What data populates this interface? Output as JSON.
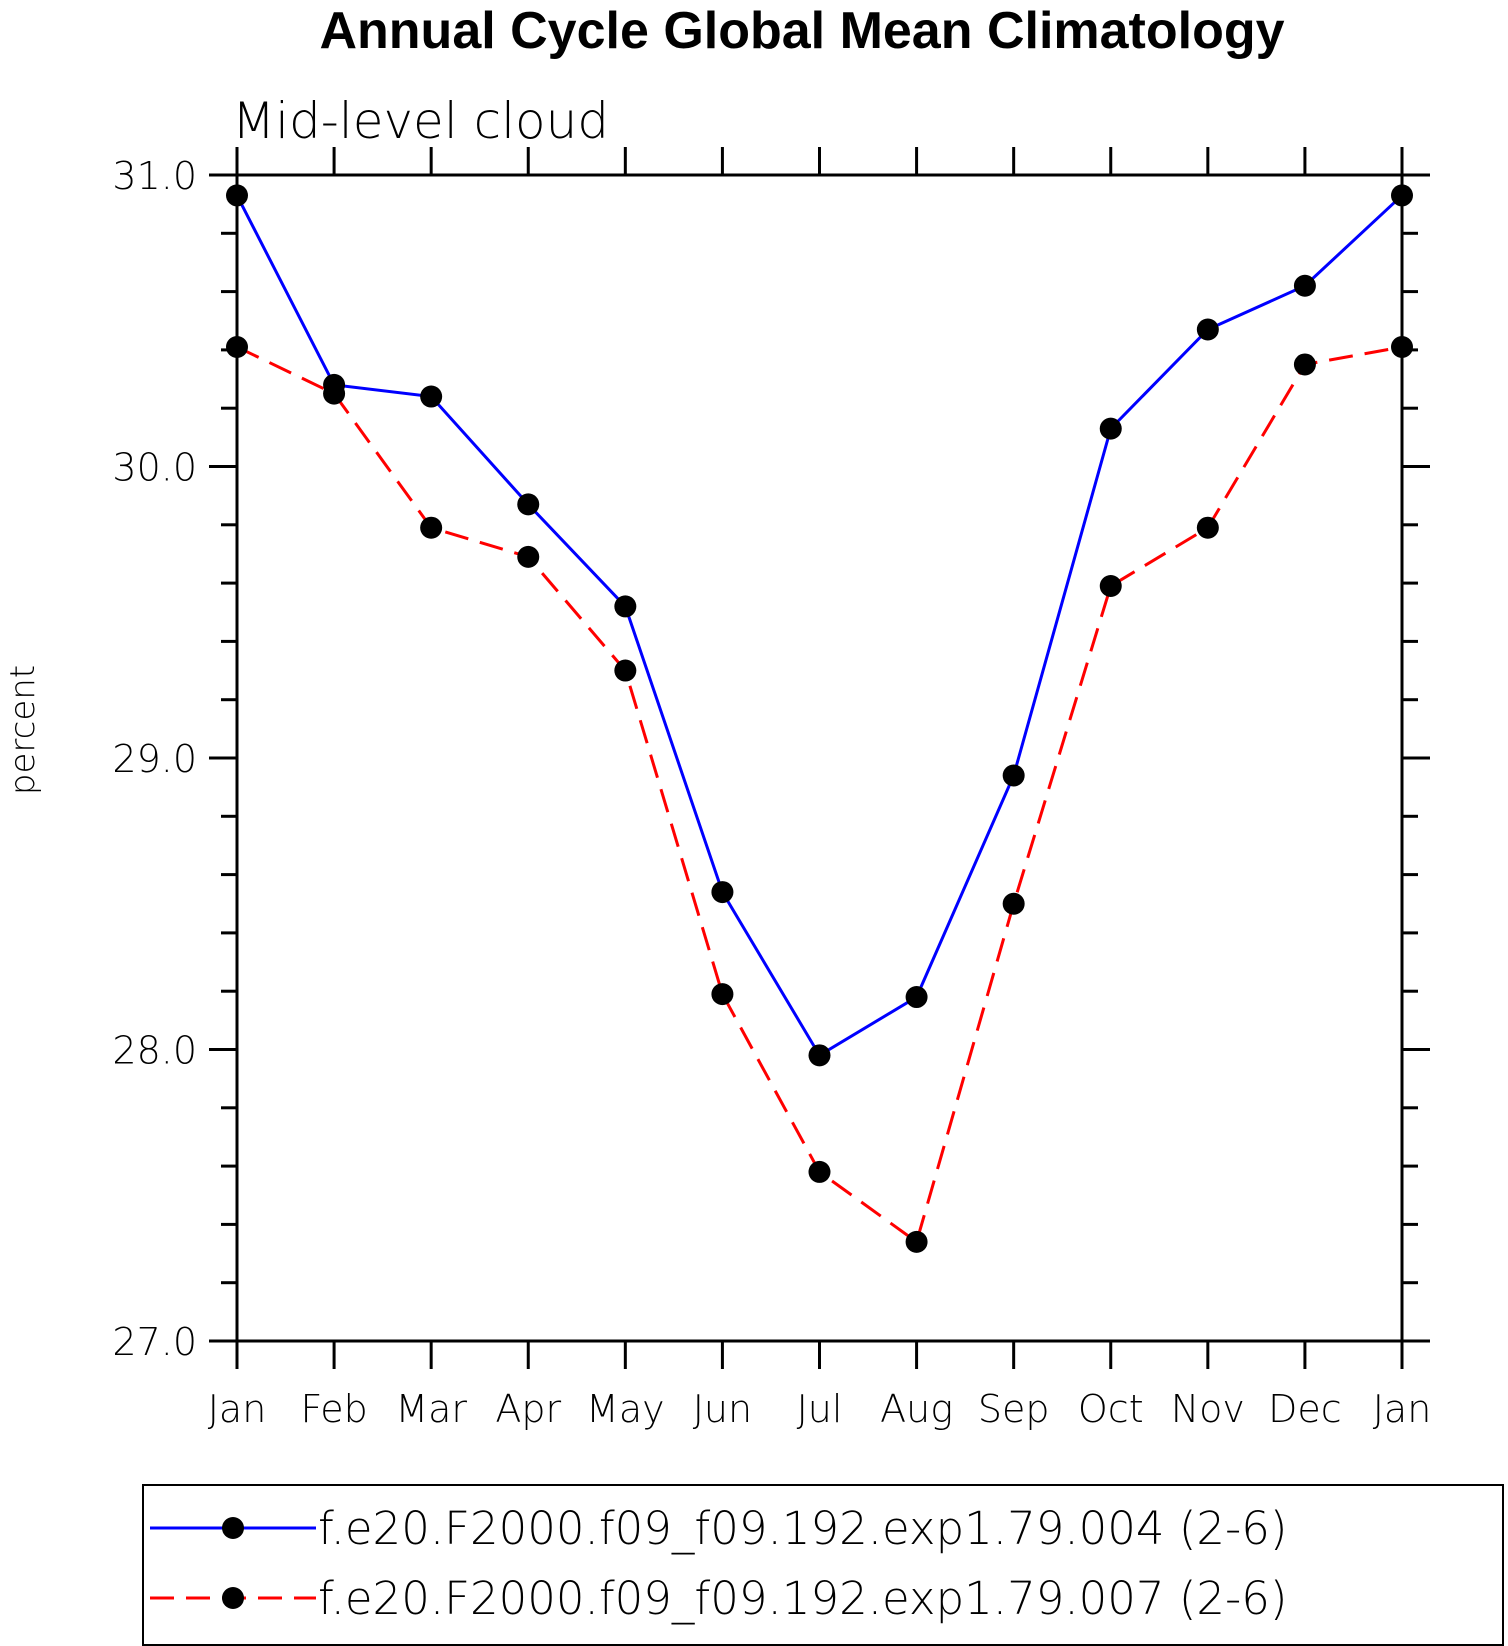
{
  "chart_data": {
    "type": "line",
    "title": "Annual Cycle Global Mean Climatology",
    "subtitle": "Mid-level cloud",
    "xlabel": "",
    "ylabel": "percent",
    "categories": [
      "Jan",
      "Feb",
      "Mar",
      "Apr",
      "May",
      "Jun",
      "Jul",
      "Aug",
      "Sep",
      "Oct",
      "Nov",
      "Dec",
      "Jan"
    ],
    "ylim": [
      27.0,
      31.0
    ],
    "yticks": [
      "27.0",
      "28.0",
      "29.0",
      "30.0",
      "31.0"
    ],
    "grid": false,
    "legend_position": "bottom",
    "series": [
      {
        "name": "f.e20.F2000.f09_f09.192.exp1.79.004 (2-6)",
        "color": "#0000ff",
        "line_style": "solid",
        "marker": "filled-circle",
        "values": [
          30.93,
          30.28,
          30.24,
          29.87,
          29.52,
          28.54,
          27.98,
          28.18,
          28.94,
          30.13,
          30.47,
          30.62,
          30.93
        ]
      },
      {
        "name": "f.e20.F2000.f09_f09.192.exp1.79.007 (2-6)",
        "color": "#ff0000",
        "line_style": "dashed",
        "marker": "filled-circle",
        "values": [
          30.41,
          30.25,
          29.79,
          29.69,
          29.3,
          28.19,
          27.58,
          27.34,
          28.5,
          29.59,
          29.79,
          30.35,
          30.41
        ]
      }
    ]
  }
}
